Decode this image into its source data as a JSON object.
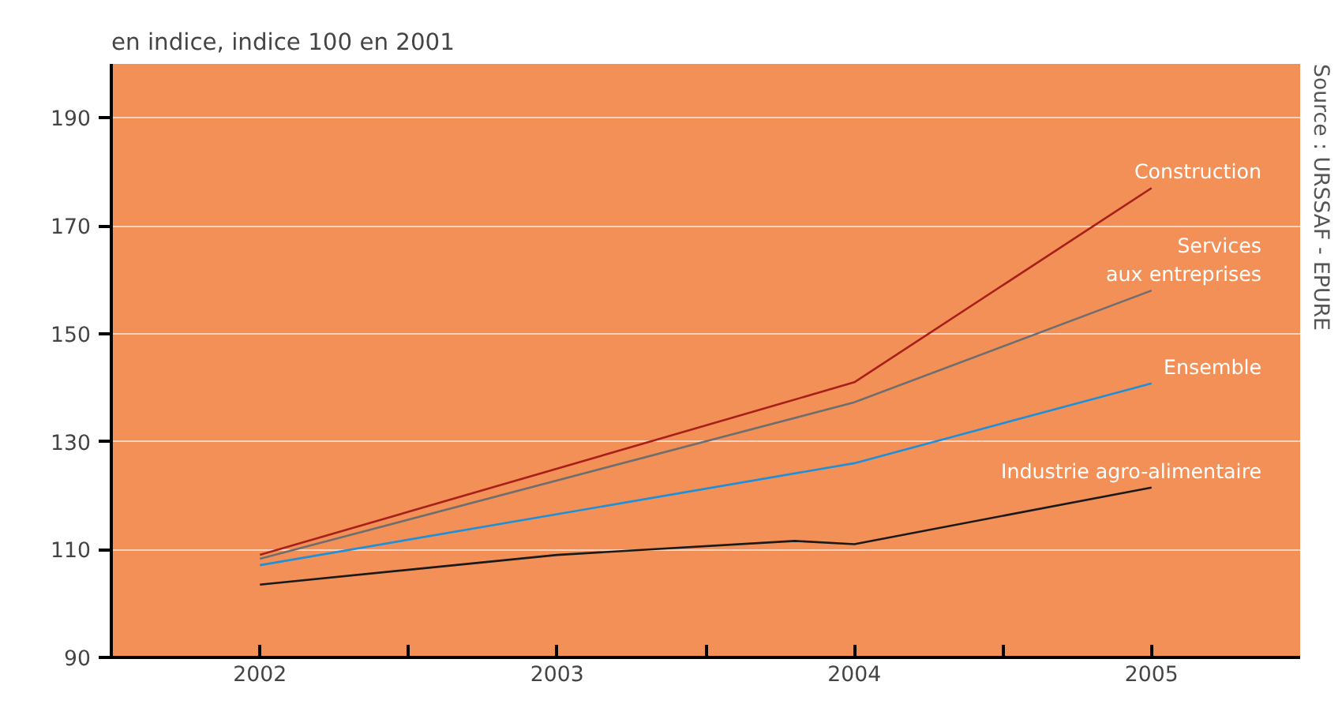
{
  "chart_data": {
    "type": "line",
    "title": "en indice, indice 100 en 2001",
    "x": [
      2002,
      2004,
      2005
    ],
    "series": [
      {
        "name": "Construction",
        "color": "#a8201a",
        "values": [
          109,
          141,
          177
        ]
      },
      {
        "name": "Services\naux entreprises",
        "color": "#6e6e6e",
        "values": [
          108.3,
          137.3,
          158
        ]
      },
      {
        "name": "Ensemble",
        "color": "#1e8fd8",
        "values": [
          107.1,
          126,
          140.8
        ]
      },
      {
        "name": "Industrie agro-alimentaire",
        "color": "#1a1a1a",
        "x": [
          2002,
          2003,
          2003.8,
          2004,
          2005
        ],
        "values": [
          103.5,
          109,
          111.6,
          111,
          121.5
        ]
      }
    ],
    "xlim": [
      2001.5,
      2005.5
    ],
    "xticks": [
      2002,
      {
        "value": 2002.5,
        "label": null
      },
      2003,
      {
        "value": 2003.5,
        "label": null
      },
      2004,
      {
        "value": 2004.5,
        "label": null
      },
      2005
    ],
    "ylim": [
      90,
      200
    ],
    "yticks": [
      90,
      110,
      130,
      150,
      170,
      190
    ],
    "grid": "y",
    "marker": "none",
    "line_style": "solid",
    "annotations": [
      "Source : URSSAF - EPURE"
    ]
  }
}
